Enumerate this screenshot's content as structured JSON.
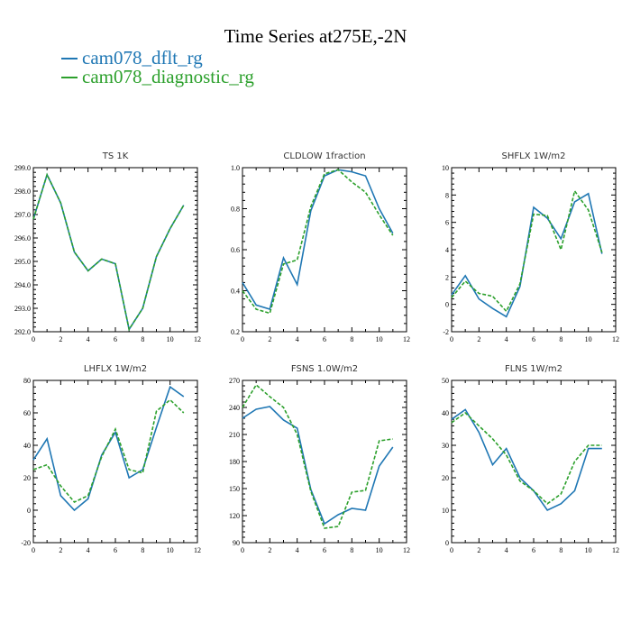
{
  "title": "Time Series at275E,-2N",
  "legend": [
    {
      "label": "cam078_dflt_rg",
      "color": "#1f77b4",
      "dash": "solid"
    },
    {
      "label": "cam078_diagnostic_rg",
      "color": "#2ca02c",
      "dash": "dashed"
    }
  ],
  "chart_data": [
    {
      "type": "line",
      "title": "TS 1K",
      "xlim": [
        0,
        12
      ],
      "xticks": [
        0,
        2,
        4,
        6,
        8,
        10,
        12
      ],
      "ylim": [
        292.0,
        299.0
      ],
      "yticks": [
        292.0,
        293.0,
        294.0,
        295.0,
        296.0,
        297.0,
        298.0,
        299.0
      ],
      "ytick_labels": [
        "292.0",
        "293.0",
        "294.0",
        "295.0",
        "296.0",
        "297.0",
        "298.0",
        "299.0"
      ],
      "x": [
        0,
        1,
        2,
        3,
        4,
        5,
        6,
        7,
        8,
        9,
        10,
        11
      ],
      "series": [
        {
          "name": "cam078_dflt_rg",
          "values": [
            296.8,
            298.7,
            297.5,
            295.4,
            294.6,
            295.1,
            294.9,
            292.1,
            293.0,
            295.2,
            296.4,
            297.4
          ]
        },
        {
          "name": "cam078_diagnostic_rg",
          "values": [
            296.8,
            298.7,
            297.5,
            295.4,
            294.6,
            295.1,
            294.9,
            292.1,
            293.0,
            295.2,
            296.4,
            297.4
          ]
        }
      ]
    },
    {
      "type": "line",
      "title": "CLDLOW 1fraction",
      "xlim": [
        0,
        12
      ],
      "xticks": [
        0,
        2,
        4,
        6,
        8,
        10,
        12
      ],
      "ylim": [
        0.2,
        1.0
      ],
      "yticks": [
        0.2,
        0.4,
        0.6,
        0.8,
        1.0
      ],
      "ytick_labels": [
        "0.2",
        "0.4",
        "0.6",
        "0.8",
        "1.0"
      ],
      "x": [
        0,
        1,
        2,
        3,
        4,
        5,
        6,
        7,
        8,
        9,
        10,
        11
      ],
      "series": [
        {
          "name": "cam078_dflt_rg",
          "values": [
            0.44,
            0.33,
            0.31,
            0.56,
            0.43,
            0.79,
            0.96,
            0.99,
            0.98,
            0.96,
            0.8,
            0.68
          ]
        },
        {
          "name": "cam078_diagnostic_rg",
          "values": [
            0.4,
            0.31,
            0.29,
            0.53,
            0.55,
            0.81,
            0.97,
            0.99,
            0.93,
            0.88,
            0.77,
            0.67
          ]
        }
      ]
    },
    {
      "type": "line",
      "title": "SHFLX 1W/m2",
      "xlim": [
        0,
        12
      ],
      "xticks": [
        0,
        2,
        4,
        6,
        8,
        10,
        12
      ],
      "ylim": [
        -2,
        10
      ],
      "yticks": [
        -2,
        0,
        2,
        4,
        6,
        8,
        10
      ],
      "ytick_labels": [
        "-2",
        "0",
        "2",
        "4",
        "6",
        "8",
        "10"
      ],
      "x": [
        0,
        1,
        2,
        3,
        4,
        5,
        6,
        7,
        8,
        9,
        10,
        11
      ],
      "series": [
        {
          "name": "cam078_dflt_rg",
          "values": [
            0.7,
            2.1,
            0.4,
            -0.3,
            -0.9,
            1.3,
            7.1,
            6.3,
            4.8,
            7.5,
            8.1,
            3.7
          ]
        },
        {
          "name": "cam078_diagnostic_rg",
          "values": [
            0.5,
            1.7,
            0.8,
            0.6,
            -0.5,
            1.5,
            6.6,
            6.5,
            4.0,
            8.3,
            6.9,
            3.8
          ]
        }
      ]
    },
    {
      "type": "line",
      "title": "LHFLX 1W/m2",
      "xlim": [
        0,
        12
      ],
      "xticks": [
        0,
        2,
        4,
        6,
        8,
        10,
        12
      ],
      "ylim": [
        -20,
        80
      ],
      "yticks": [
        -20,
        0,
        20,
        40,
        60,
        80
      ],
      "ytick_labels": [
        "-20",
        "0",
        "20",
        "40",
        "60",
        "80"
      ],
      "x": [
        0,
        1,
        2,
        3,
        4,
        5,
        6,
        7,
        8,
        9,
        10,
        11
      ],
      "series": [
        {
          "name": "cam078_dflt_rg",
          "values": [
            31,
            44,
            9,
            0,
            7,
            34,
            48,
            20,
            25,
            51,
            76,
            70
          ]
        },
        {
          "name": "cam078_diagnostic_rg",
          "values": [
            25,
            28,
            15,
            5,
            9,
            33,
            50,
            25,
            23,
            61,
            68,
            60
          ]
        }
      ]
    },
    {
      "type": "line",
      "title": "FSNS 1.0W/m2",
      "xlim": [
        0,
        12
      ],
      "xticks": [
        0,
        2,
        4,
        6,
        8,
        10,
        12
      ],
      "ylim": [
        90,
        270
      ],
      "yticks": [
        90,
        120,
        150,
        180,
        210,
        240,
        270
      ],
      "ytick_labels": [
        "90",
        "120",
        "150",
        "180",
        "210",
        "240",
        "270"
      ],
      "x": [
        0,
        1,
        2,
        3,
        4,
        5,
        6,
        7,
        8,
        9,
        10,
        11
      ],
      "series": [
        {
          "name": "cam078_dflt_rg",
          "values": [
            228,
            238,
            241,
            226,
            217,
            149,
            111,
            121,
            128,
            126,
            175,
            196
          ]
        },
        {
          "name": "cam078_diagnostic_rg",
          "values": [
            240,
            265,
            252,
            240,
            210,
            147,
            106,
            108,
            146,
            148,
            203,
            205
          ]
        }
      ]
    },
    {
      "type": "line",
      "title": "FLNS 1W/m2",
      "xlim": [
        0,
        12
      ],
      "xticks": [
        0,
        2,
        4,
        6,
        8,
        10,
        12
      ],
      "ylim": [
        0,
        50
      ],
      "yticks": [
        0,
        10,
        20,
        30,
        40,
        50
      ],
      "ytick_labels": [
        "0",
        "10",
        "20",
        "30",
        "40",
        "50"
      ],
      "x": [
        0,
        1,
        2,
        3,
        4,
        5,
        6,
        7,
        8,
        9,
        10,
        11
      ],
      "series": [
        {
          "name": "cam078_dflt_rg",
          "values": [
            38,
            41,
            34,
            24,
            29,
            20,
            16,
            10,
            12,
            16,
            29,
            29
          ]
        },
        {
          "name": "cam078_diagnostic_rg",
          "values": [
            37,
            40,
            36,
            32,
            27,
            19,
            16,
            12,
            15,
            25,
            30,
            30
          ]
        }
      ]
    }
  ]
}
